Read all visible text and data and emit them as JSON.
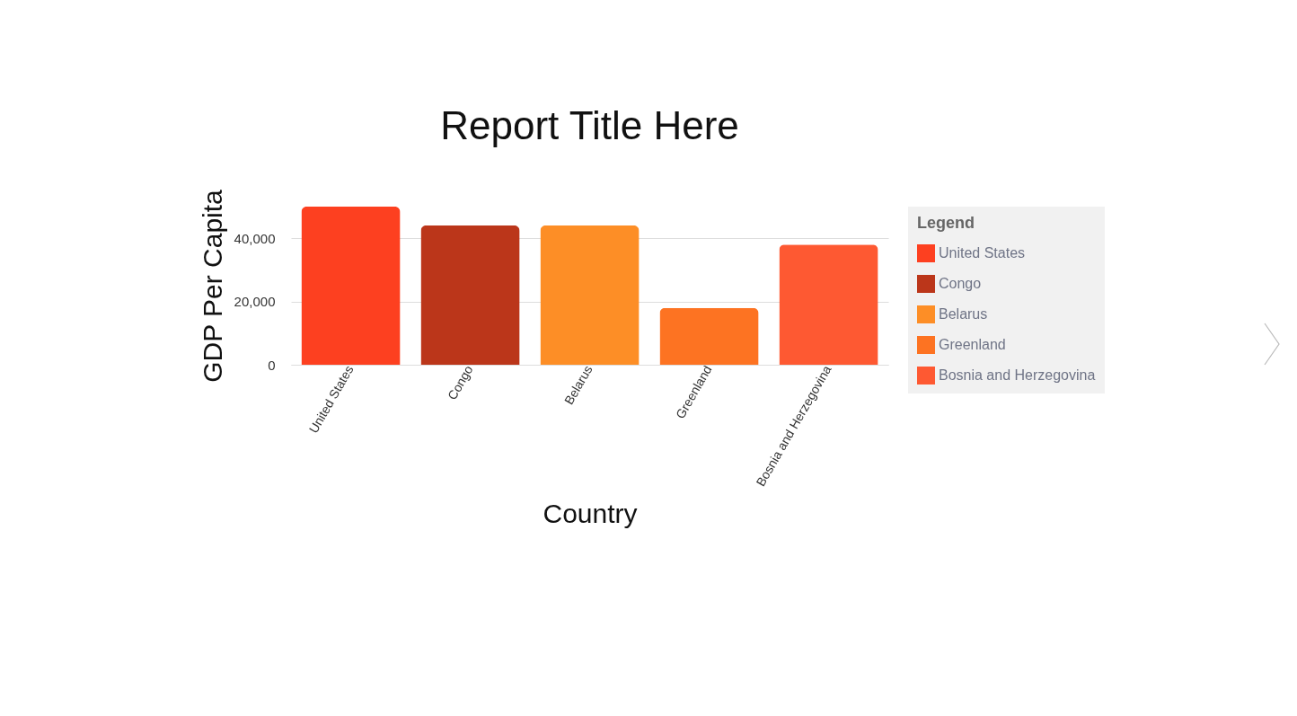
{
  "chart_data": {
    "type": "bar",
    "title": "Report Title Here",
    "xlabel": "Country",
    "ylabel": "GDP Per Capita",
    "legend_title": "Legend",
    "categories": [
      "United States",
      "Congo",
      "Belarus",
      "Greenland",
      "Bosnia and Herzegovina"
    ],
    "series": [
      {
        "name": "United States",
        "color": "#fd4020",
        "values": [
          50000,
          null,
          null,
          null,
          null
        ]
      },
      {
        "name": "Congo",
        "color": "#bb361a",
        "values": [
          null,
          44000,
          null,
          null,
          null
        ]
      },
      {
        "name": "Belarus",
        "color": "#fd8e26",
        "values": [
          null,
          null,
          44000,
          null,
          null
        ]
      },
      {
        "name": "Greenland",
        "color": "#fd7322",
        "values": [
          null,
          null,
          null,
          18000,
          null
        ]
      },
      {
        "name": "Bosnia and Herzegovina",
        "color": "#fe5932",
        "values": [
          null,
          null,
          null,
          null,
          38000
        ]
      }
    ],
    "ylim": [
      0,
      50000
    ],
    "yticks": [
      0,
      {
        "value": 20000,
        "label": "20,000"
      },
      {
        "value": 40000,
        "label": "40,000"
      }
    ],
    "grid": "y",
    "legend": "right"
  }
}
